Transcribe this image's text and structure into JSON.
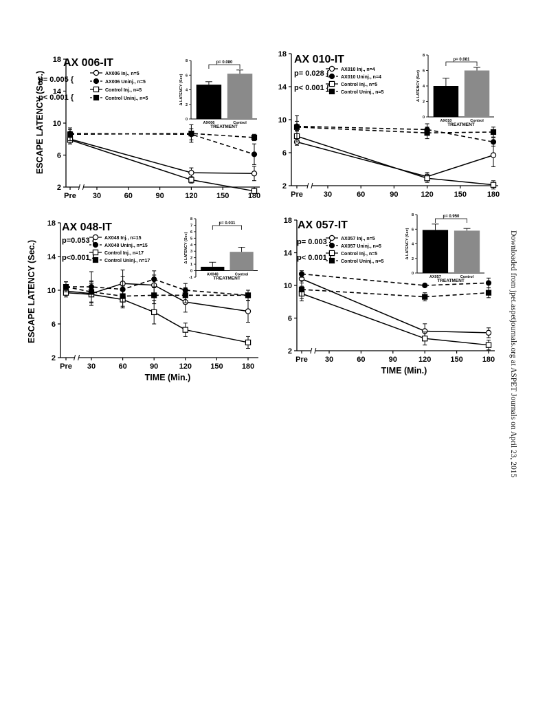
{
  "side_note": "Downloaded from jpet.aspetjournals.org at ASPET Journals on April 23, 2015",
  "chart_data": [
    {
      "type": "line",
      "title": "AX 006-IT",
      "ylabel": "ESCAPE LATENCY (Sec.)",
      "xlabel": "",
      "x_ticks": [
        "Pre",
        "30",
        "60",
        "90",
        "120",
        "150",
        "180"
      ],
      "x_values": [
        "Pre",
        "120",
        "180"
      ],
      "ylim": [
        2,
        18
      ],
      "y_ticks": [
        2,
        6,
        10,
        14,
        18
      ],
      "p_labels": [
        "p= 0.005",
        "p< 0.001"
      ],
      "series": [
        {
          "name": "AX006 Inj., n=5",
          "marker": "open-circle",
          "dash": false,
          "values": [
            8.0,
            3.8,
            3.7
          ],
          "err": [
            0.6,
            0.6,
            0.9
          ]
        },
        {
          "name": "AX006 Uninj., n=5",
          "marker": "filled-circle",
          "dash": true,
          "values": [
            8.7,
            8.6,
            6.1
          ],
          "err": [
            0.5,
            0.7,
            1.3
          ]
        },
        {
          "name": "Control Inj., n=5",
          "marker": "open-square",
          "dash": false,
          "values": [
            7.9,
            2.9,
            1.5
          ],
          "err": [
            0.5,
            0.4,
            0.2
          ]
        },
        {
          "name": "Control Uninj., n=5",
          "marker": "filled-square",
          "dash": true,
          "values": [
            8.6,
            8.7,
            8.2
          ],
          "err": [
            0.8,
            1.1,
            0.4
          ]
        }
      ],
      "inset": {
        "categories": [
          "AX006",
          "Control"
        ],
        "values": [
          4.7,
          6.2
        ],
        "err": [
          0.4,
          0.5
        ],
        "ylim": [
          0,
          8
        ],
        "y_ticks": [
          0,
          2,
          4,
          6,
          8
        ],
        "ylabel": "Δ LATENCY (Sec)",
        "xlabel": "TREATMENT",
        "p": "p= 0.080"
      }
    },
    {
      "type": "line",
      "title": "AX 010-IT",
      "ylabel": "",
      "xlabel": "",
      "x_ticks": [
        "Pre",
        "30",
        "60",
        "90",
        "120",
        "150",
        "180"
      ],
      "x_values": [
        "Pre",
        "120",
        "180"
      ],
      "ylim": [
        2,
        18
      ],
      "y_ticks": [
        2,
        6,
        10,
        14,
        18
      ],
      "p_labels": [
        "p= 0.028",
        "p< 0.001"
      ],
      "series": [
        {
          "name": "AX010 Inj., n=4",
          "marker": "open-circle",
          "dash": false,
          "values": [
            7.3,
            3.1,
            5.7
          ],
          "err": [
            0.4,
            0.5,
            1.4
          ]
        },
        {
          "name": "AX010 Uninj., n=4",
          "marker": "filled-circle",
          "dash": true,
          "values": [
            9.2,
            8.8,
            7.3
          ],
          "err": [
            0.6,
            0.7,
            0.5
          ]
        },
        {
          "name": "Control Inj., n=5",
          "marker": "open-square",
          "dash": false,
          "values": [
            8.0,
            2.9,
            2.1
          ],
          "err": [
            0.7,
            0.5,
            0.5
          ]
        },
        {
          "name": "Control Uninj., n=5",
          "marker": "filled-square",
          "dash": true,
          "values": [
            9.1,
            8.4,
            8.5
          ],
          "err": [
            1.4,
            0.7,
            0.6
          ]
        }
      ],
      "inset": {
        "categories": [
          "AX010",
          "Control"
        ],
        "values": [
          4.0,
          6.0
        ],
        "err": [
          1.0,
          0.4
        ],
        "ylim": [
          0,
          8
        ],
        "y_ticks": [
          0,
          2,
          4,
          6,
          8
        ],
        "ylabel": "Δ LATENCY (Sec)",
        "xlabel": "TREATMENT",
        "p": "p= 0.081"
      }
    },
    {
      "type": "line",
      "title": "AX 048-IT",
      "ylabel": "ESCAPE LATENCY (Sec.)",
      "xlabel": "TIME (Min.)",
      "x_ticks": [
        "Pre",
        "30",
        "60",
        "90",
        "120",
        "150",
        "180"
      ],
      "x_values": [
        "Pre",
        "30",
        "60",
        "90",
        "120",
        "180"
      ],
      "ylim": [
        2,
        18
      ],
      "y_ticks": [
        2,
        6,
        10,
        14,
        18
      ],
      "p_labels": [
        "p=0.053",
        "p<0.001"
      ],
      "series": [
        {
          "name": "AX048 Inj., n=15",
          "marker": "open-circle",
          "dash": false,
          "values": [
            9.9,
            9.6,
            10.8,
            10.6,
            8.6,
            7.5
          ],
          "err": [
            0.5,
            1.4,
            1.6,
            1.2,
            1.2,
            1.3
          ]
        },
        {
          "name": "AX048 Uninj., n=15",
          "marker": "filled-circle",
          "dash": true,
          "values": [
            10.4,
            10.4,
            10.1,
            11.3,
            10.0,
            9.4
          ],
          "err": [
            0.6,
            1.8,
            1.5,
            1.0,
            0.8,
            0.6
          ]
        },
        {
          "name": "Control Inj., n=17",
          "marker": "open-square",
          "dash": false,
          "values": [
            9.7,
            9.5,
            8.9,
            7.4,
            5.3,
            3.8
          ],
          "err": [
            0.5,
            1.3,
            1.0,
            1.4,
            0.8,
            0.7
          ]
        },
        {
          "name": "Control Uninj., n=17",
          "marker": "filled-square",
          "dash": true,
          "values": [
            10.4,
            9.8,
            9.3,
            9.4,
            9.4,
            9.4
          ],
          "err": [
            0.6,
            1.3,
            1.2,
            1.0,
            0.9,
            0.6
          ]
        }
      ],
      "inset": {
        "categories": [
          "AX048",
          "Control"
        ],
        "values": [
          0.6,
          2.9
        ],
        "err": [
          0.7,
          0.7
        ],
        "ylim": [
          -1,
          8
        ],
        "y_ticks": [
          -1,
          0,
          1,
          2,
          3,
          4,
          5,
          6,
          7,
          8
        ],
        "ylabel": "Δ LATENCY (Sec)",
        "xlabel": "TREATMENT",
        "p": "p= 0.031"
      }
    },
    {
      "type": "line",
      "title": "AX 057-IT",
      "ylabel": "",
      "xlabel": "TIME (Min.)",
      "x_ticks": [
        "Pre",
        "30",
        "60",
        "90",
        "120",
        "150",
        "180"
      ],
      "x_values": [
        "Pre",
        "120",
        "180"
      ],
      "ylim": [
        2,
        18
      ],
      "y_ticks": [
        2,
        6,
        10,
        14,
        18
      ],
      "p_labels": [
        "p= 0.003",
        "p< 0.001"
      ],
      "series": [
        {
          "name": "AX057 Inj., n=5",
          "marker": "open-circle",
          "dash": false,
          "values": [
            10.8,
            4.4,
            4.2
          ],
          "err": [
            0.5,
            0.9,
            0.6
          ]
        },
        {
          "name": "AX057 Uninj., n=5",
          "marker": "filled-circle",
          "dash": true,
          "values": [
            11.4,
            10.0,
            10.3
          ],
          "err": [
            0.4,
            0.2,
            0.6
          ]
        },
        {
          "name": "Control Inj., n=5",
          "marker": "open-square",
          "dash": false,
          "values": [
            9.0,
            3.5,
            2.7
          ],
          "err": [
            0.9,
            0.8,
            0.6
          ]
        },
        {
          "name": "Control Uninj., n=5",
          "marker": "filled-square",
          "dash": true,
          "values": [
            9.5,
            8.6,
            9.1
          ],
          "err": [
            1.1,
            0.5,
            0.6
          ]
        }
      ],
      "inset": {
        "categories": [
          "AX057",
          "Control"
        ],
        "values": [
          5.9,
          5.8
        ],
        "err": [
          0.8,
          0.3
        ],
        "ylim": [
          0,
          8
        ],
        "y_ticks": [
          0,
          2,
          4,
          6,
          8
        ],
        "ylabel": "Δ LATENCY (Sec)",
        "xlabel": "TREATMENT",
        "p": "p= 0.950"
      }
    }
  ]
}
